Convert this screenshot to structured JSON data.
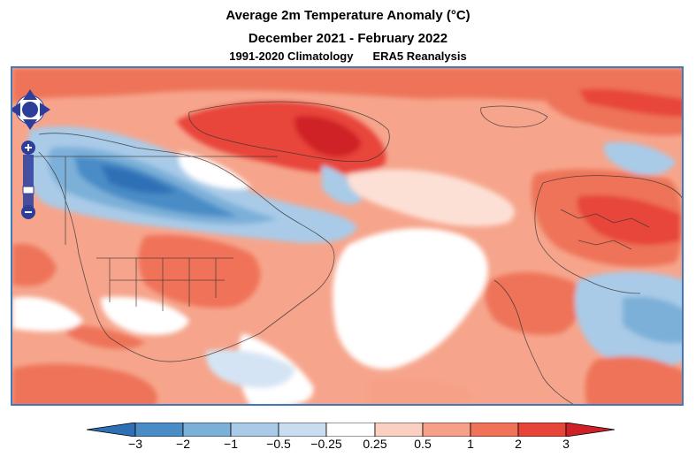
{
  "header": {
    "title": "Average 2m Temperature Anomaly (°C)",
    "period": "December 2021 - February 2022",
    "climatology": "1991-2020 Climatology",
    "dataset": "ERA5 Reanalysis"
  },
  "map_controls": {
    "pan": "pan-control",
    "zoom_in": "+",
    "zoom_out": "−",
    "zoom_level": "–"
  },
  "colorbar": {
    "ticks": [
      "−3",
      "−2",
      "−1",
      "−0.5",
      "−0.25",
      "0.25",
      "0.5",
      "1",
      "2",
      "3"
    ],
    "colors": [
      "#2f6fb5",
      "#4a8cc6",
      "#7bb0d8",
      "#a9cbe8",
      "#d5e4f4",
      "#ffffff",
      "#fbd0c2",
      "#f7a088",
      "#f07258",
      "#e8453a",
      "#cf2027"
    ]
  }
}
